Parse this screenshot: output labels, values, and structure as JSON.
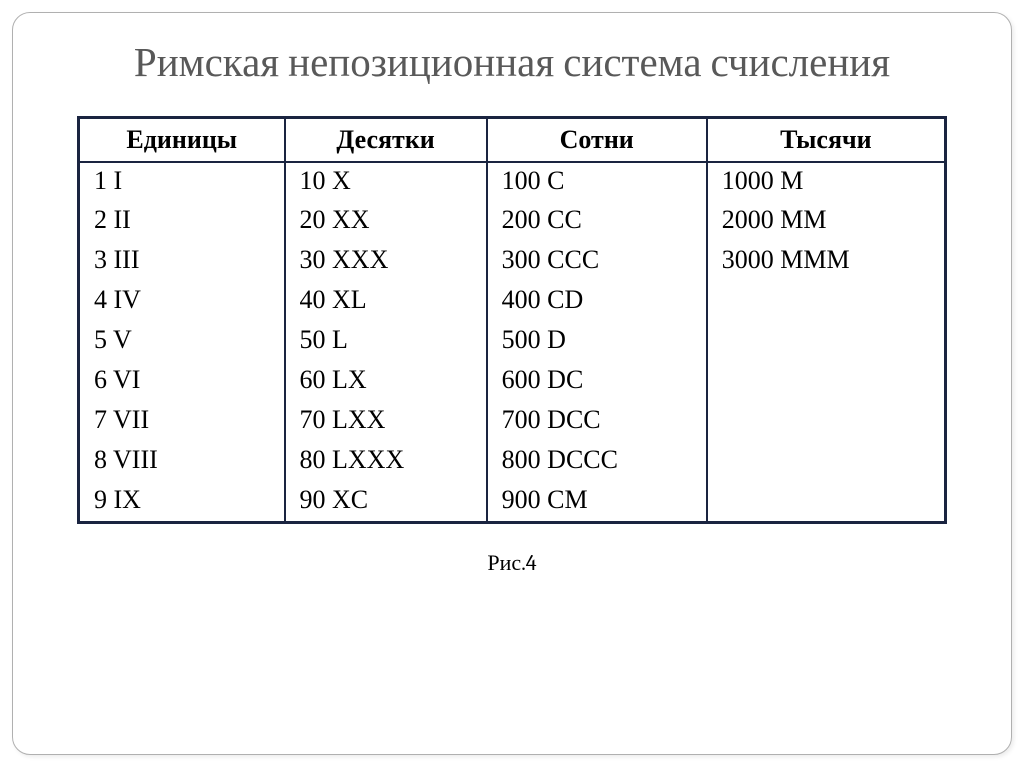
{
  "title": "Римская непозиционная система счисления",
  "caption": "Рис.4",
  "table": {
    "headers": [
      "Единицы",
      "Десятки",
      "Сотни",
      "Тысячи"
    ],
    "rows": [
      [
        "1 I",
        "10 X",
        "100 C",
        "1000 M"
      ],
      [
        "2 II",
        "20 XX",
        "200 CC",
        "2000 MM"
      ],
      [
        "3 III",
        "30 XXX",
        "300 CCC",
        "3000 MMM"
      ],
      [
        "4 IV",
        "40 XL",
        "400 CD",
        ""
      ],
      [
        "5 V",
        "50 L",
        "500 D",
        ""
      ],
      [
        "6 VI",
        "60 LX",
        "600 DC",
        ""
      ],
      [
        "7 VII",
        "70 LXX",
        "700 DCC",
        ""
      ],
      [
        "8 VIII",
        "80 LXXX",
        "800 DCCC",
        ""
      ],
      [
        "9 IX",
        "90 XC",
        "900 CM",
        ""
      ]
    ],
    "border_color": "#1a2440",
    "header_fontsize": 26,
    "cell_fontsize": 26
  },
  "title_color": "#595959",
  "title_fontsize": 41,
  "background_color": "#ffffff",
  "frame_border_color": "#b0b0b0"
}
